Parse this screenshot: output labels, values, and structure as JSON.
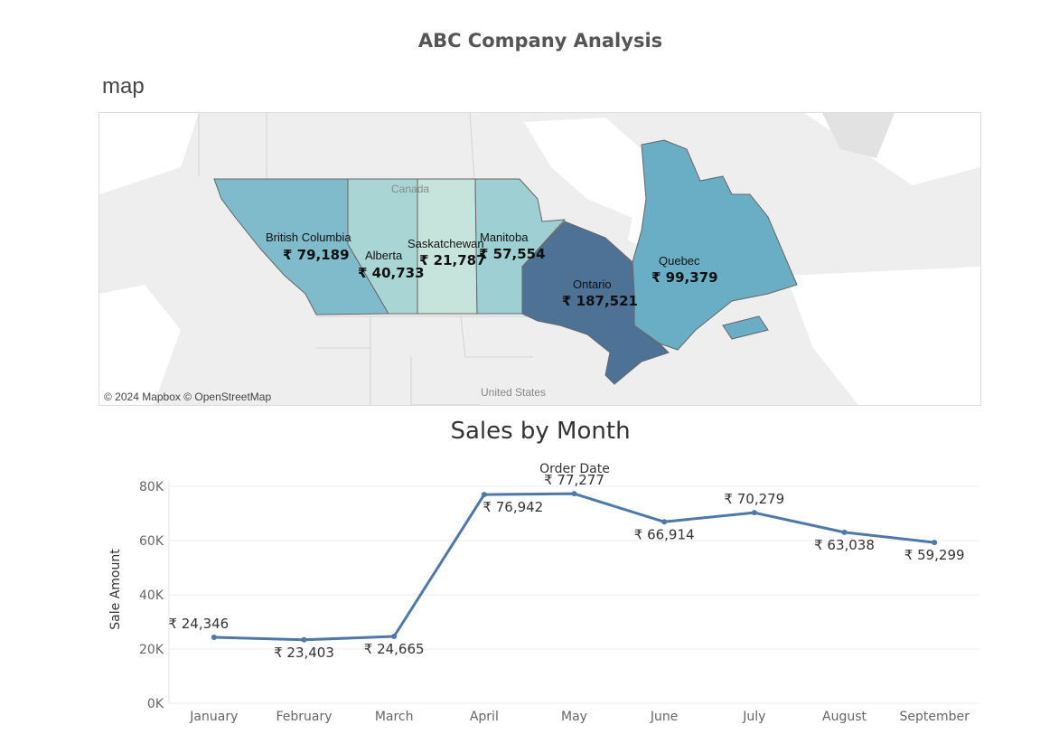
{
  "dashboard_title": "ABC Company Analysis",
  "map": {
    "caption": "map",
    "attribution": "© 2024 Mapbox © OpenStreetMap",
    "background_labels": [
      "Canada",
      "United States"
    ],
    "provinces": [
      {
        "name": "British Columbia",
        "value": "₹ 79,189",
        "color": "#7fbbcb"
      },
      {
        "name": "Alberta",
        "value": "₹ 40,733",
        "color": "#a9d6d4"
      },
      {
        "name": "Saskatchewan",
        "value": "₹ 21,787",
        "color": "#c6e4dc"
      },
      {
        "name": "Manitoba",
        "value": "₹ 57,554",
        "color": "#9dcfd3"
      },
      {
        "name": "Ontario",
        "value": "₹ 187,521",
        "color": "#4e7196"
      },
      {
        "name": "Quebec",
        "value": "₹ 99,379",
        "color": "#6aaec5"
      }
    ]
  },
  "sales_chart": {
    "title": "Sales by Month"
  },
  "chart_data": {
    "type": "line",
    "title": "Sales by Month",
    "xlabel": "Order Date",
    "ylabel": "Sale Amount",
    "categories": [
      "January",
      "February",
      "March",
      "April",
      "May",
      "June",
      "July",
      "August",
      "September"
    ],
    "series": [
      {
        "values": [
          24346,
          23403,
          24665,
          76942,
          77277,
          66914,
          70279,
          63038,
          59299
        ],
        "labels": [
          "₹ 24,346",
          "₹ 23,403",
          "₹ 24,665",
          "₹ 76,942",
          "₹ 77,277",
          "₹ 66,914",
          "₹ 70,279",
          "₹ 63,038",
          "₹ 59,299"
        ],
        "color": "#4e79a7"
      }
    ],
    "yticks": [
      0,
      20000,
      40000,
      60000,
      80000
    ],
    "ytick_labels": [
      "0K",
      "20K",
      "40K",
      "60K",
      "80K"
    ],
    "ylim": [
      0,
      82000
    ],
    "grid": true
  }
}
